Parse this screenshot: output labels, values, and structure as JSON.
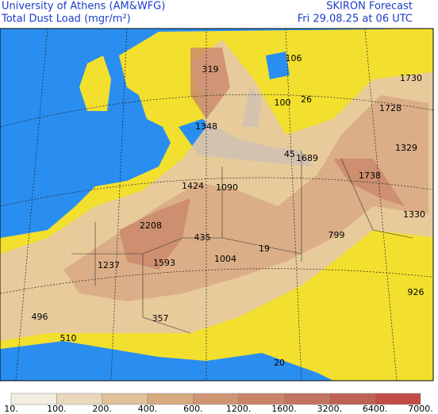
{
  "header": {
    "institution": "University of Athens (AM&WFG)",
    "product": "Total Dust Load (mgr/m²)",
    "model": "SKIRON Forecast",
    "valid_time": "Fri 29.08.25 at 06 UTC"
  },
  "map_labels": [
    "106",
    "319",
    "1730",
    "100",
    "26",
    "1728",
    "1348",
    "45",
    "1329",
    "1689",
    "1738",
    "1424",
    "1090",
    "1330",
    "2208",
    "799",
    "435",
    "1237",
    "1593",
    "1004",
    "19",
    "926",
    "496",
    "357",
    "510",
    "20"
  ],
  "colorbar": {
    "labels": [
      "10.",
      "100.",
      "200.",
      "400.",
      "600.",
      "1200.",
      "1600.",
      "3200.",
      "6400.",
      "7000."
    ],
    "colors": [
      "#f4ede2",
      "#ead8bd",
      "#e1c09a",
      "#d8aa82",
      "#cf9572",
      "#c98468",
      "#c27460",
      "#bf6155",
      "#c24c45"
    ]
  }
}
